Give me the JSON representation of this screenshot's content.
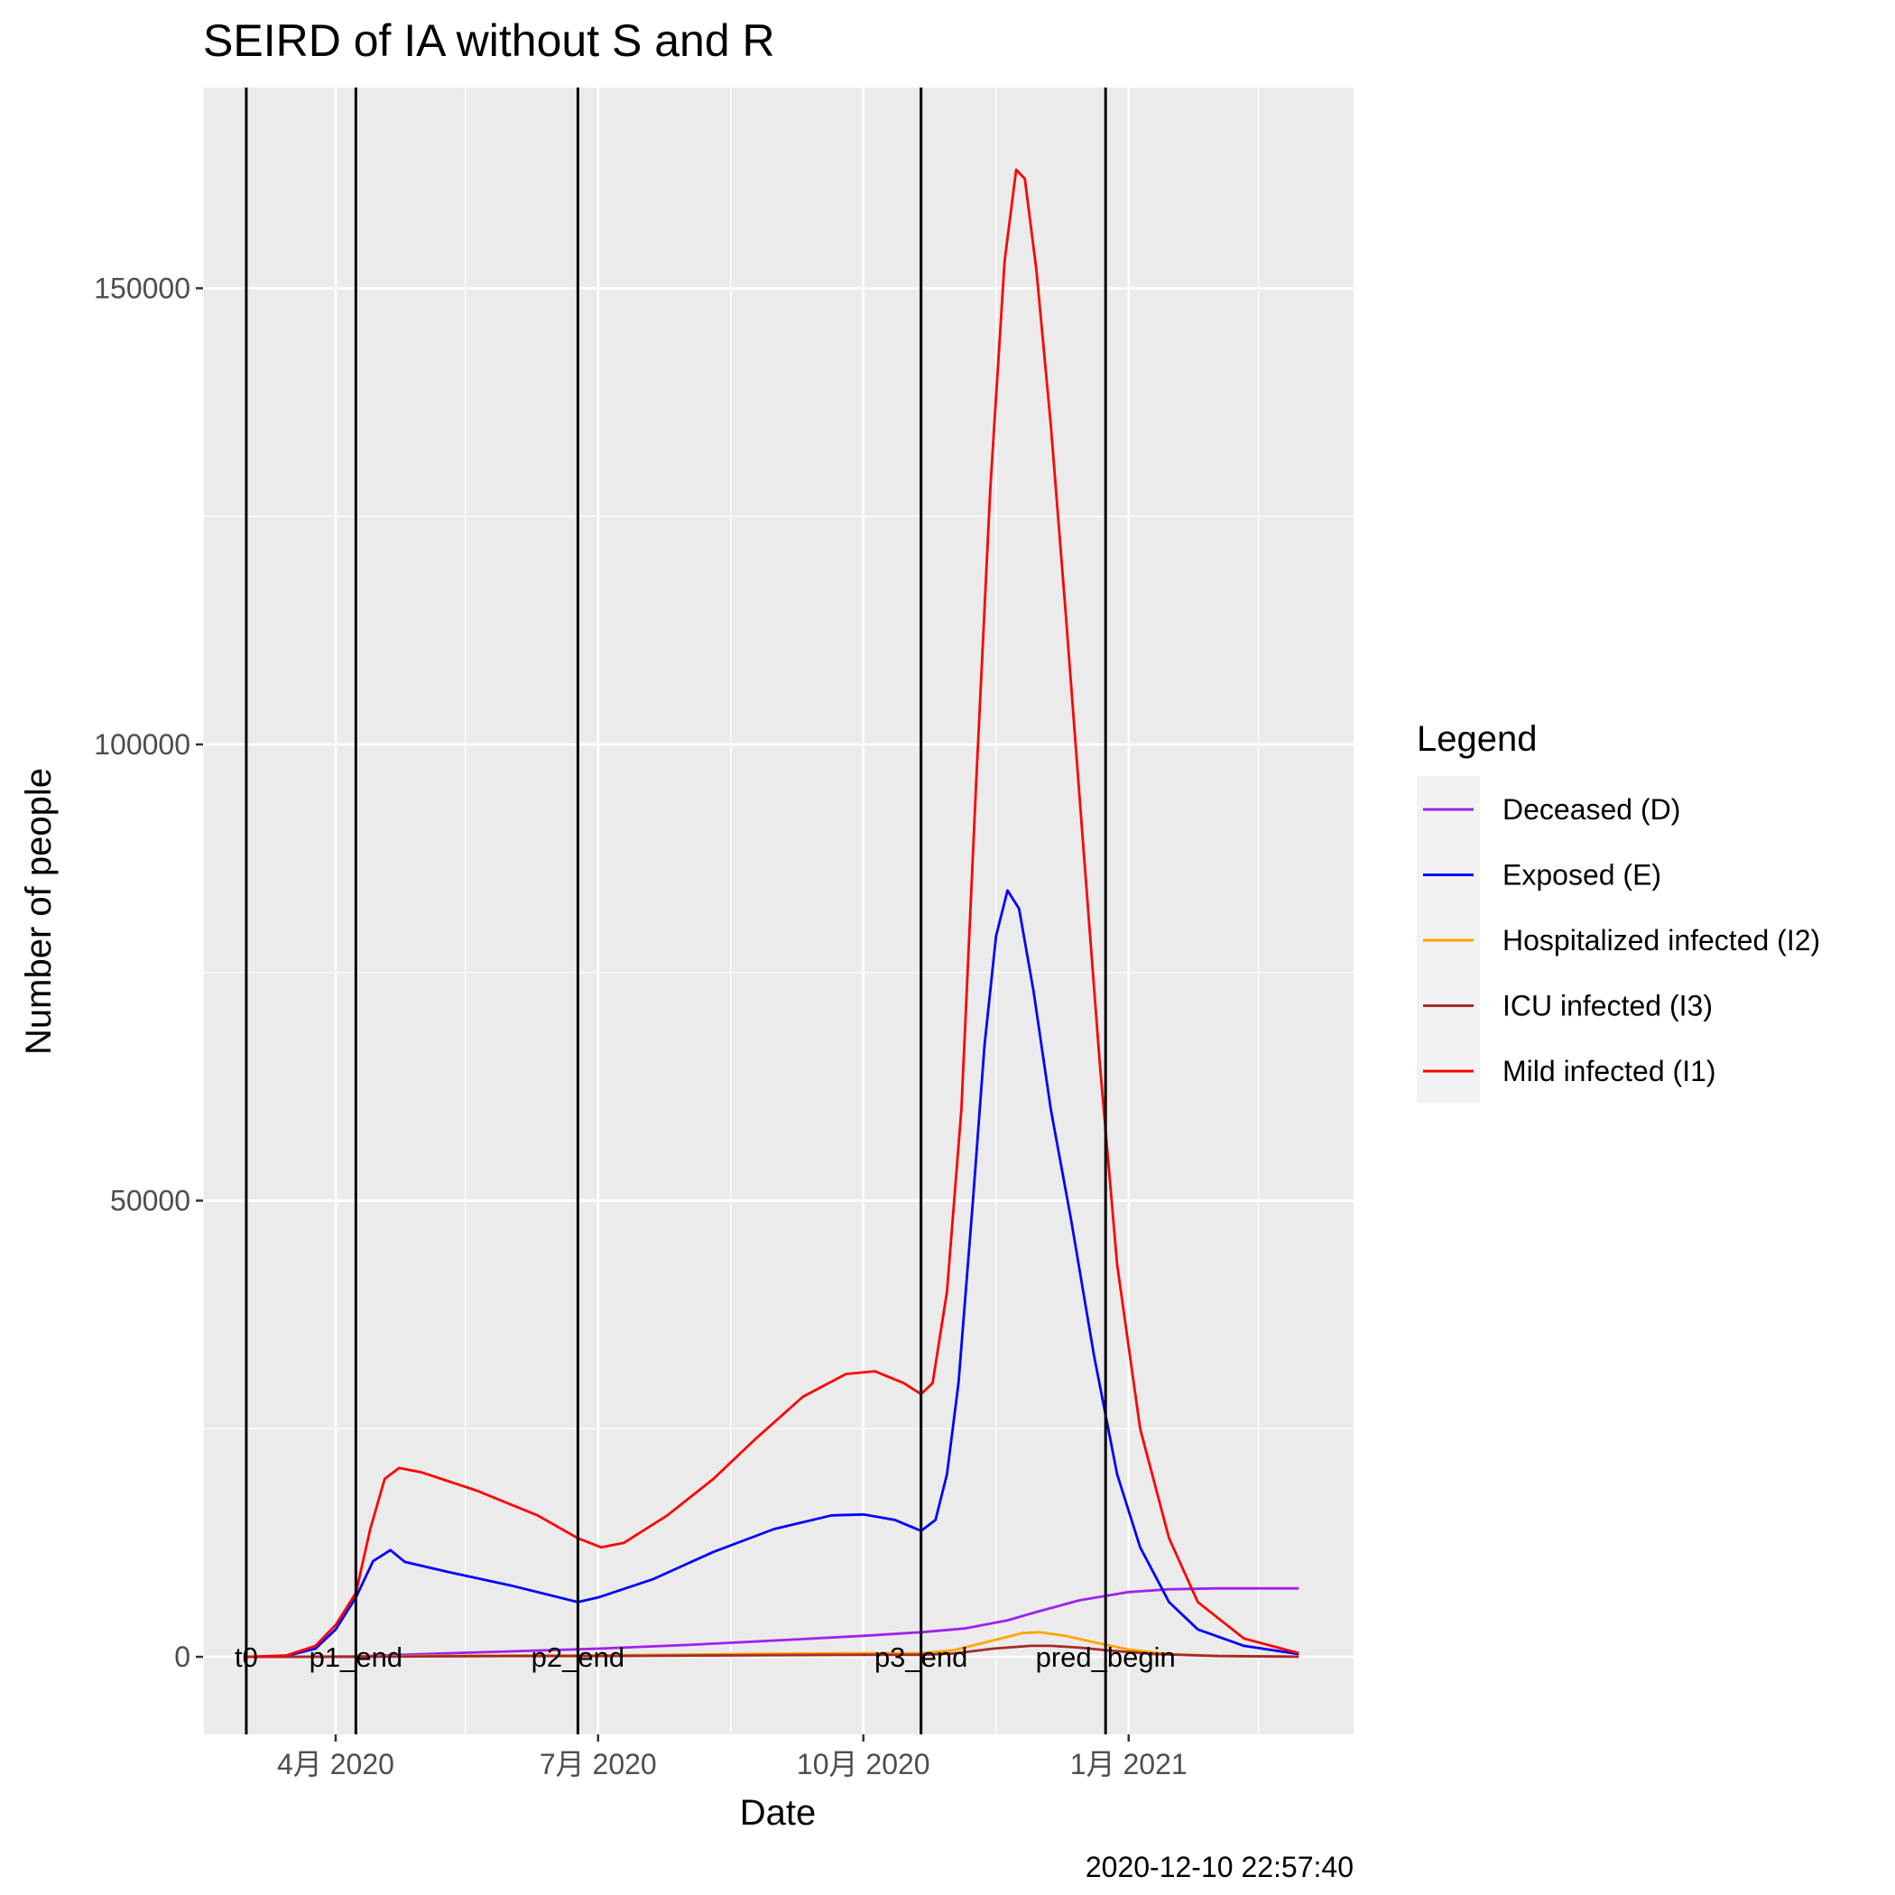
{
  "chart_data": {
    "type": "line",
    "title": "SEIRD of IA without S and R",
    "xlabel": "Date",
    "ylabel": "Number of people",
    "caption": "2020-12-10 22:57:40",
    "x_ticks": [
      {
        "date": "2020-04-01",
        "label": "4月 2020"
      },
      {
        "date": "2020-07-01",
        "label": "7月 2020"
      },
      {
        "date": "2020-10-01",
        "label": "10月 2020"
      },
      {
        "date": "2021-01-01",
        "label": "1月 2021"
      }
    ],
    "x_range": [
      "2020-02-15",
      "2021-03-20"
    ],
    "y_ticks": [
      0,
      50000,
      100000,
      150000
    ],
    "ylim": [
      -8500,
      172000
    ],
    "grid": true,
    "legend": {
      "title": "Legend",
      "position": "right"
    },
    "vlines": [
      {
        "date": "2020-03-01",
        "label": "t0"
      },
      {
        "date": "2020-04-08",
        "label": "p1_end"
      },
      {
        "date": "2020-06-24",
        "label": "p2_end"
      },
      {
        "date": "2020-10-21",
        "label": "p3_end"
      },
      {
        "date": "2020-12-24",
        "label": "pred_begin"
      }
    ],
    "series": [
      {
        "name": "Deceased (D)",
        "color": "#a020f0",
        "points": [
          [
            "2020-03-01",
            0
          ],
          [
            "2020-04-08",
            50
          ],
          [
            "2020-05-01",
            300
          ],
          [
            "2020-06-01",
            600
          ],
          [
            "2020-07-01",
            900
          ],
          [
            "2020-08-01",
            1300
          ],
          [
            "2020-09-01",
            1800
          ],
          [
            "2020-10-01",
            2300
          ],
          [
            "2020-10-21",
            2700
          ],
          [
            "2020-11-05",
            3100
          ],
          [
            "2020-11-20",
            4000
          ],
          [
            "2020-12-01",
            5000
          ],
          [
            "2020-12-15",
            6200
          ],
          [
            "2021-01-01",
            7100
          ],
          [
            "2021-01-15",
            7400
          ],
          [
            "2021-02-01",
            7500
          ],
          [
            "2021-03-01",
            7500
          ]
        ]
      },
      {
        "name": "Exposed (E)",
        "color": "#0000ff",
        "points": [
          [
            "2020-03-01",
            0
          ],
          [
            "2020-03-15",
            100
          ],
          [
            "2020-03-25",
            900
          ],
          [
            "2020-04-01",
            3000
          ],
          [
            "2020-04-08",
            6500
          ],
          [
            "2020-04-14",
            10500
          ],
          [
            "2020-04-20",
            11700
          ],
          [
            "2020-04-25",
            10400
          ],
          [
            "2020-05-10",
            9300
          ],
          [
            "2020-06-01",
            7800
          ],
          [
            "2020-06-24",
            6000
          ],
          [
            "2020-07-01",
            6500
          ],
          [
            "2020-07-20",
            8500
          ],
          [
            "2020-08-10",
            11500
          ],
          [
            "2020-08-31",
            14000
          ],
          [
            "2020-09-20",
            15500
          ],
          [
            "2020-10-01",
            15600
          ],
          [
            "2020-10-12",
            15000
          ],
          [
            "2020-10-21",
            13800
          ],
          [
            "2020-10-26",
            15000
          ],
          [
            "2020-10-30",
            20000
          ],
          [
            "2020-11-03",
            30000
          ],
          [
            "2020-11-08",
            50000
          ],
          [
            "2020-11-12",
            67000
          ],
          [
            "2020-11-16",
            79000
          ],
          [
            "2020-11-20",
            84000
          ],
          [
            "2020-11-24",
            82000
          ],
          [
            "2020-11-29",
            73000
          ],
          [
            "2020-12-05",
            60000
          ],
          [
            "2020-12-12",
            48000
          ],
          [
            "2020-12-20",
            33000
          ],
          [
            "2020-12-28",
            20000
          ],
          [
            "2021-01-05",
            12000
          ],
          [
            "2021-01-15",
            6000
          ],
          [
            "2021-01-25",
            3000
          ],
          [
            "2021-02-10",
            1200
          ],
          [
            "2021-03-01",
            300
          ]
        ]
      },
      {
        "name": "Hospitalized infected (I2)",
        "color": "#ffa500",
        "points": [
          [
            "2020-03-01",
            0
          ],
          [
            "2020-04-08",
            20
          ],
          [
            "2020-05-01",
            100
          ],
          [
            "2020-06-01",
            150
          ],
          [
            "2020-07-01",
            150
          ],
          [
            "2020-08-01",
            250
          ],
          [
            "2020-09-01",
            350
          ],
          [
            "2020-10-01",
            400
          ],
          [
            "2020-10-21",
            400
          ],
          [
            "2020-11-01",
            700
          ],
          [
            "2020-11-15",
            1800
          ],
          [
            "2020-11-25",
            2600
          ],
          [
            "2020-12-01",
            2700
          ],
          [
            "2020-12-10",
            2300
          ],
          [
            "2020-12-20",
            1600
          ],
          [
            "2021-01-01",
            800
          ],
          [
            "2021-01-15",
            300
          ],
          [
            "2021-02-01",
            100
          ],
          [
            "2021-03-01",
            20
          ]
        ]
      },
      {
        "name": "ICU infected (I3)",
        "color": "#a52a2a",
        "points": [
          [
            "2020-03-01",
            0
          ],
          [
            "2020-04-08",
            10
          ],
          [
            "2020-05-01",
            50
          ],
          [
            "2020-06-01",
            80
          ],
          [
            "2020-07-01",
            80
          ],
          [
            "2020-08-01",
            130
          ],
          [
            "2020-09-01",
            180
          ],
          [
            "2020-10-01",
            220
          ],
          [
            "2020-10-21",
            220
          ],
          [
            "2020-11-01",
            350
          ],
          [
            "2020-11-15",
            900
          ],
          [
            "2020-11-28",
            1200
          ],
          [
            "2020-12-05",
            1200
          ],
          [
            "2020-12-15",
            1000
          ],
          [
            "2020-12-25",
            700
          ],
          [
            "2021-01-10",
            300
          ],
          [
            "2021-02-01",
            80
          ],
          [
            "2021-03-01",
            20
          ]
        ]
      },
      {
        "name": "Mild infected (I1)",
        "color": "#ff0000",
        "points": [
          [
            "2020-03-01",
            0
          ],
          [
            "2020-03-15",
            150
          ],
          [
            "2020-03-25",
            1200
          ],
          [
            "2020-04-01",
            3500
          ],
          [
            "2020-04-08",
            7000
          ],
          [
            "2020-04-13",
            14000
          ],
          [
            "2020-04-18",
            19500
          ],
          [
            "2020-04-23",
            20700
          ],
          [
            "2020-05-01",
            20200
          ],
          [
            "2020-05-20",
            18200
          ],
          [
            "2020-06-10",
            15500
          ],
          [
            "2020-06-24",
            13000
          ],
          [
            "2020-07-02",
            12000
          ],
          [
            "2020-07-10",
            12500
          ],
          [
            "2020-07-25",
            15500
          ],
          [
            "2020-08-10",
            19500
          ],
          [
            "2020-08-25",
            24000
          ],
          [
            "2020-09-10",
            28500
          ],
          [
            "2020-09-25",
            31000
          ],
          [
            "2020-10-05",
            31300
          ],
          [
            "2020-10-15",
            30000
          ],
          [
            "2020-10-21",
            28800
          ],
          [
            "2020-10-25",
            30000
          ],
          [
            "2020-10-30",
            40000
          ],
          [
            "2020-11-04",
            60000
          ],
          [
            "2020-11-09",
            95000
          ],
          [
            "2020-11-14",
            128000
          ],
          [
            "2020-11-19",
            153000
          ],
          [
            "2020-11-23",
            163000
          ],
          [
            "2020-11-26",
            162000
          ],
          [
            "2020-11-30",
            152000
          ],
          [
            "2020-12-05",
            135000
          ],
          [
            "2020-12-10",
            115000
          ],
          [
            "2020-12-16",
            90000
          ],
          [
            "2020-12-22",
            65000
          ],
          [
            "2020-12-28",
            43000
          ],
          [
            "2021-01-05",
            25000
          ],
          [
            "2021-01-15",
            13000
          ],
          [
            "2021-01-25",
            6000
          ],
          [
            "2021-02-10",
            2000
          ],
          [
            "2021-03-01",
            400
          ]
        ]
      }
    ]
  }
}
